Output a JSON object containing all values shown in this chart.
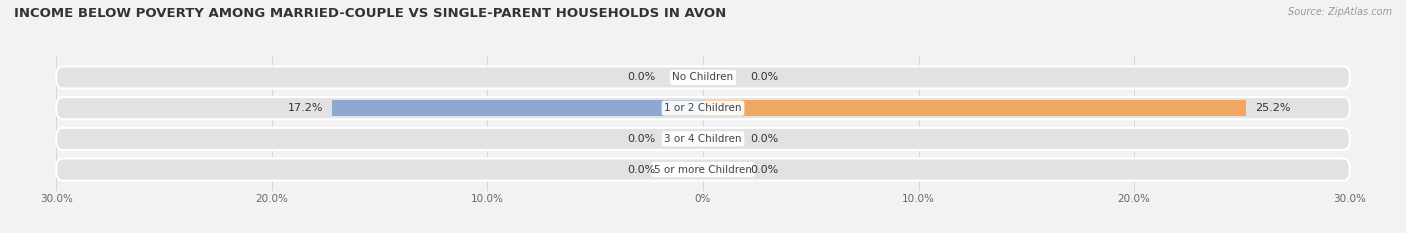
{
  "title": "INCOME BELOW POVERTY AMONG MARRIED-COUPLE VS SINGLE-PARENT HOUSEHOLDS IN AVON",
  "source": "Source: ZipAtlas.com",
  "categories": [
    "No Children",
    "1 or 2 Children",
    "3 or 4 Children",
    "5 or more Children"
  ],
  "married_couples": [
    0.0,
    17.2,
    0.0,
    0.0
  ],
  "single_parents": [
    0.0,
    25.2,
    0.0,
    0.0
  ],
  "married_color": "#8fa8d0",
  "single_color": "#f0a860",
  "bar_height": 0.52,
  "xlim": 30.0,
  "bg_color": "#f2f2f2",
  "bar_bg_color": "#e2e2e2",
  "title_fontsize": 9.5,
  "label_fontsize": 8,
  "category_fontsize": 7.5,
  "legend_fontsize": 8,
  "source_fontsize": 7
}
